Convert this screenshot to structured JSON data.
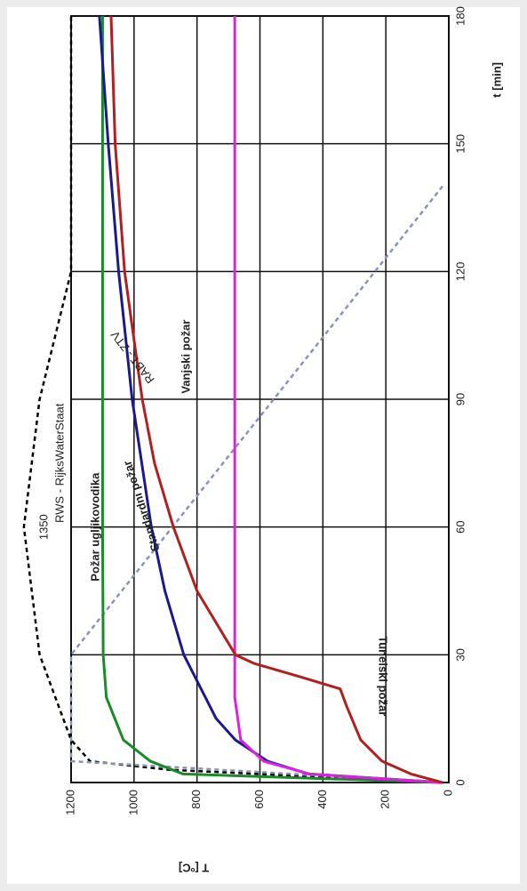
{
  "chart_data": {
    "type": "line",
    "x_label": "t [min]",
    "y_label": "T [ºC]",
    "xlim": [
      0,
      180
    ],
    "ylim": [
      0,
      1200
    ],
    "xticks": [
      0,
      30,
      60,
      90,
      120,
      150,
      180
    ],
    "yticks": [
      0,
      200,
      400,
      600,
      800,
      1000,
      1200
    ],
    "grid": true,
    "annotations": [
      "1350"
    ],
    "series": [
      {
        "name": "RWS - RijksWaterStaat",
        "color": "#000000",
        "dashed": true,
        "x": [
          0,
          3,
          5,
          10,
          30,
          60,
          90,
          120,
          180
        ],
        "values": [
          20,
          890,
          1140,
          1200,
          1300,
          1350,
          1300,
          1200,
          1200
        ]
      },
      {
        "name": "RABT - ZTV",
        "color": "#8a93b8",
        "dashed": true,
        "x": [
          0,
          5,
          30,
          140
        ],
        "values": [
          20,
          1200,
          1200,
          20
        ]
      },
      {
        "name": "Požar ugljikovodika",
        "color": "#1a8a2a",
        "dashed": false,
        "x": [
          0,
          2,
          5,
          10,
          20,
          30,
          60,
          180
        ],
        "values": [
          20,
          844,
          948,
          1034,
          1088,
          1098,
          1100,
          1100
        ]
      },
      {
        "name": "Standardni požar",
        "color": "#1a1a8c",
        "dashed": false,
        "x": [
          0,
          2,
          5,
          10,
          15,
          30,
          45,
          60,
          90,
          120,
          150,
          180
        ],
        "values": [
          20,
          445,
          576,
          678,
          739,
          842,
          902,
          945,
          1006,
          1049,
          1082,
          1110
        ]
      },
      {
        "name": "Vanjski požar",
        "color": "#e020e0",
        "dashed": false,
        "x": [
          0,
          2,
          5,
          10,
          20,
          180
        ],
        "values": [
          20,
          441,
          588,
          661,
          680,
          680
        ]
      },
      {
        "name": "Tunelski požar",
        "color": "#b02020",
        "dashed": false,
        "x": [
          0,
          2,
          5,
          10,
          18,
          22,
          25,
          28,
          30,
          45,
          60,
          75,
          90,
          120,
          150,
          180
        ],
        "values": [
          20,
          120,
          212,
          280,
          325,
          345,
          480,
          620,
          678,
          800,
          875,
          935,
          974,
          1030,
          1060,
          1073
        ]
      }
    ]
  }
}
